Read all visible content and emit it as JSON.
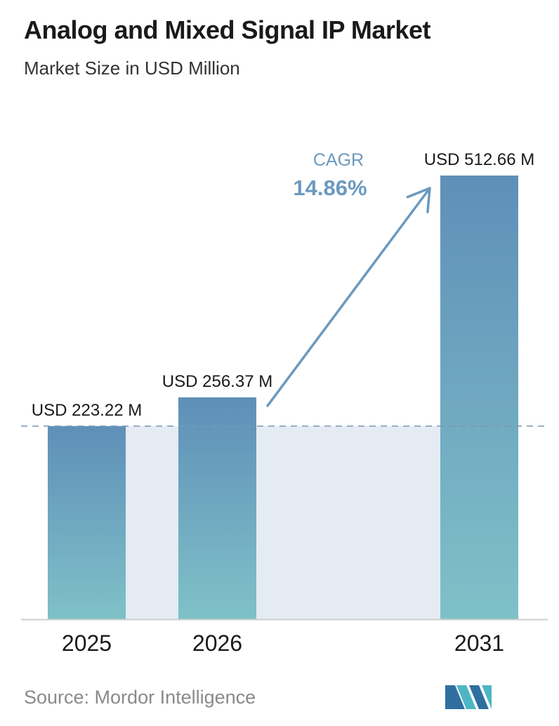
{
  "header": {
    "title": "Analog and Mixed Signal IP Market",
    "subtitle": "Market Size in USD Million"
  },
  "chart_data": {
    "type": "bar",
    "title": "Analog and Mixed Signal IP Market",
    "subtitle": "Market Size in USD Million",
    "categories": [
      "2025",
      "2026",
      "2031"
    ],
    "values": [
      223.22,
      256.37,
      512.66
    ],
    "value_labels": [
      "USD 223.22 M",
      "USD 256.37 M",
      "USD 512.66 M"
    ],
    "xlabel": "",
    "ylabel": "",
    "ylim": [
      0,
      512.66
    ],
    "grid": false,
    "legend": "none",
    "baseline_reference": {
      "value": 223.22,
      "style": "dashed"
    },
    "annotation": {
      "label": "CAGR",
      "value": "14.86%",
      "from": "2026",
      "to": "2031"
    },
    "colors": {
      "bar_top": "#5f8fb8",
      "bar_bottom": "#7fc1c8",
      "shaded_band": "#e4ebf3",
      "dashed_line": "#7b98b3",
      "arrow": "#6b99bf",
      "cagr_text": "#6b99bf",
      "axis": "#cfcfcf"
    }
  },
  "footer": {
    "source": "Source:  Mordor Intelligence",
    "logo": "mordor-intelligence-logo"
  }
}
